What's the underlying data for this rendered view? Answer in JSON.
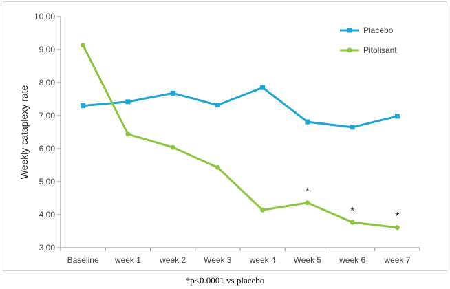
{
  "chart_data": {
    "type": "line",
    "ylabel": "Weekly cataplexy rate",
    "xlabel": "",
    "ylim": [
      3.0,
      10.0
    ],
    "ytick_step": 1.0,
    "ytick_labels": [
      "3,00",
      "4,00",
      "5,00",
      "6,00",
      "7,00",
      "8,00",
      "9,00",
      "10,00"
    ],
    "categories": [
      "Baseline",
      "week 1",
      "week 2",
      "Week 3",
      "week 4",
      "Week 5",
      "week 6",
      "week 7"
    ],
    "series": [
      {
        "name": "Placebo",
        "color": "#1ea5d6",
        "marker": "square",
        "values": [
          7.3,
          7.42,
          7.68,
          7.32,
          7.85,
          6.81,
          6.65,
          6.98
        ]
      },
      {
        "name": "Pitolisant",
        "color": "#8cc63e",
        "marker": "circle",
        "values": [
          9.13,
          6.44,
          6.04,
          5.43,
          4.14,
          4.36,
          3.77,
          3.61
        ]
      }
    ],
    "annotations": [
      {
        "category": "Week 5",
        "text": "*"
      },
      {
        "category": "week 6",
        "text": "*"
      },
      {
        "category": "week 7",
        "text": "*"
      }
    ],
    "grid": false,
    "legend_position": "top-right"
  },
  "footnote": "*p<0.0001 vs placebo"
}
